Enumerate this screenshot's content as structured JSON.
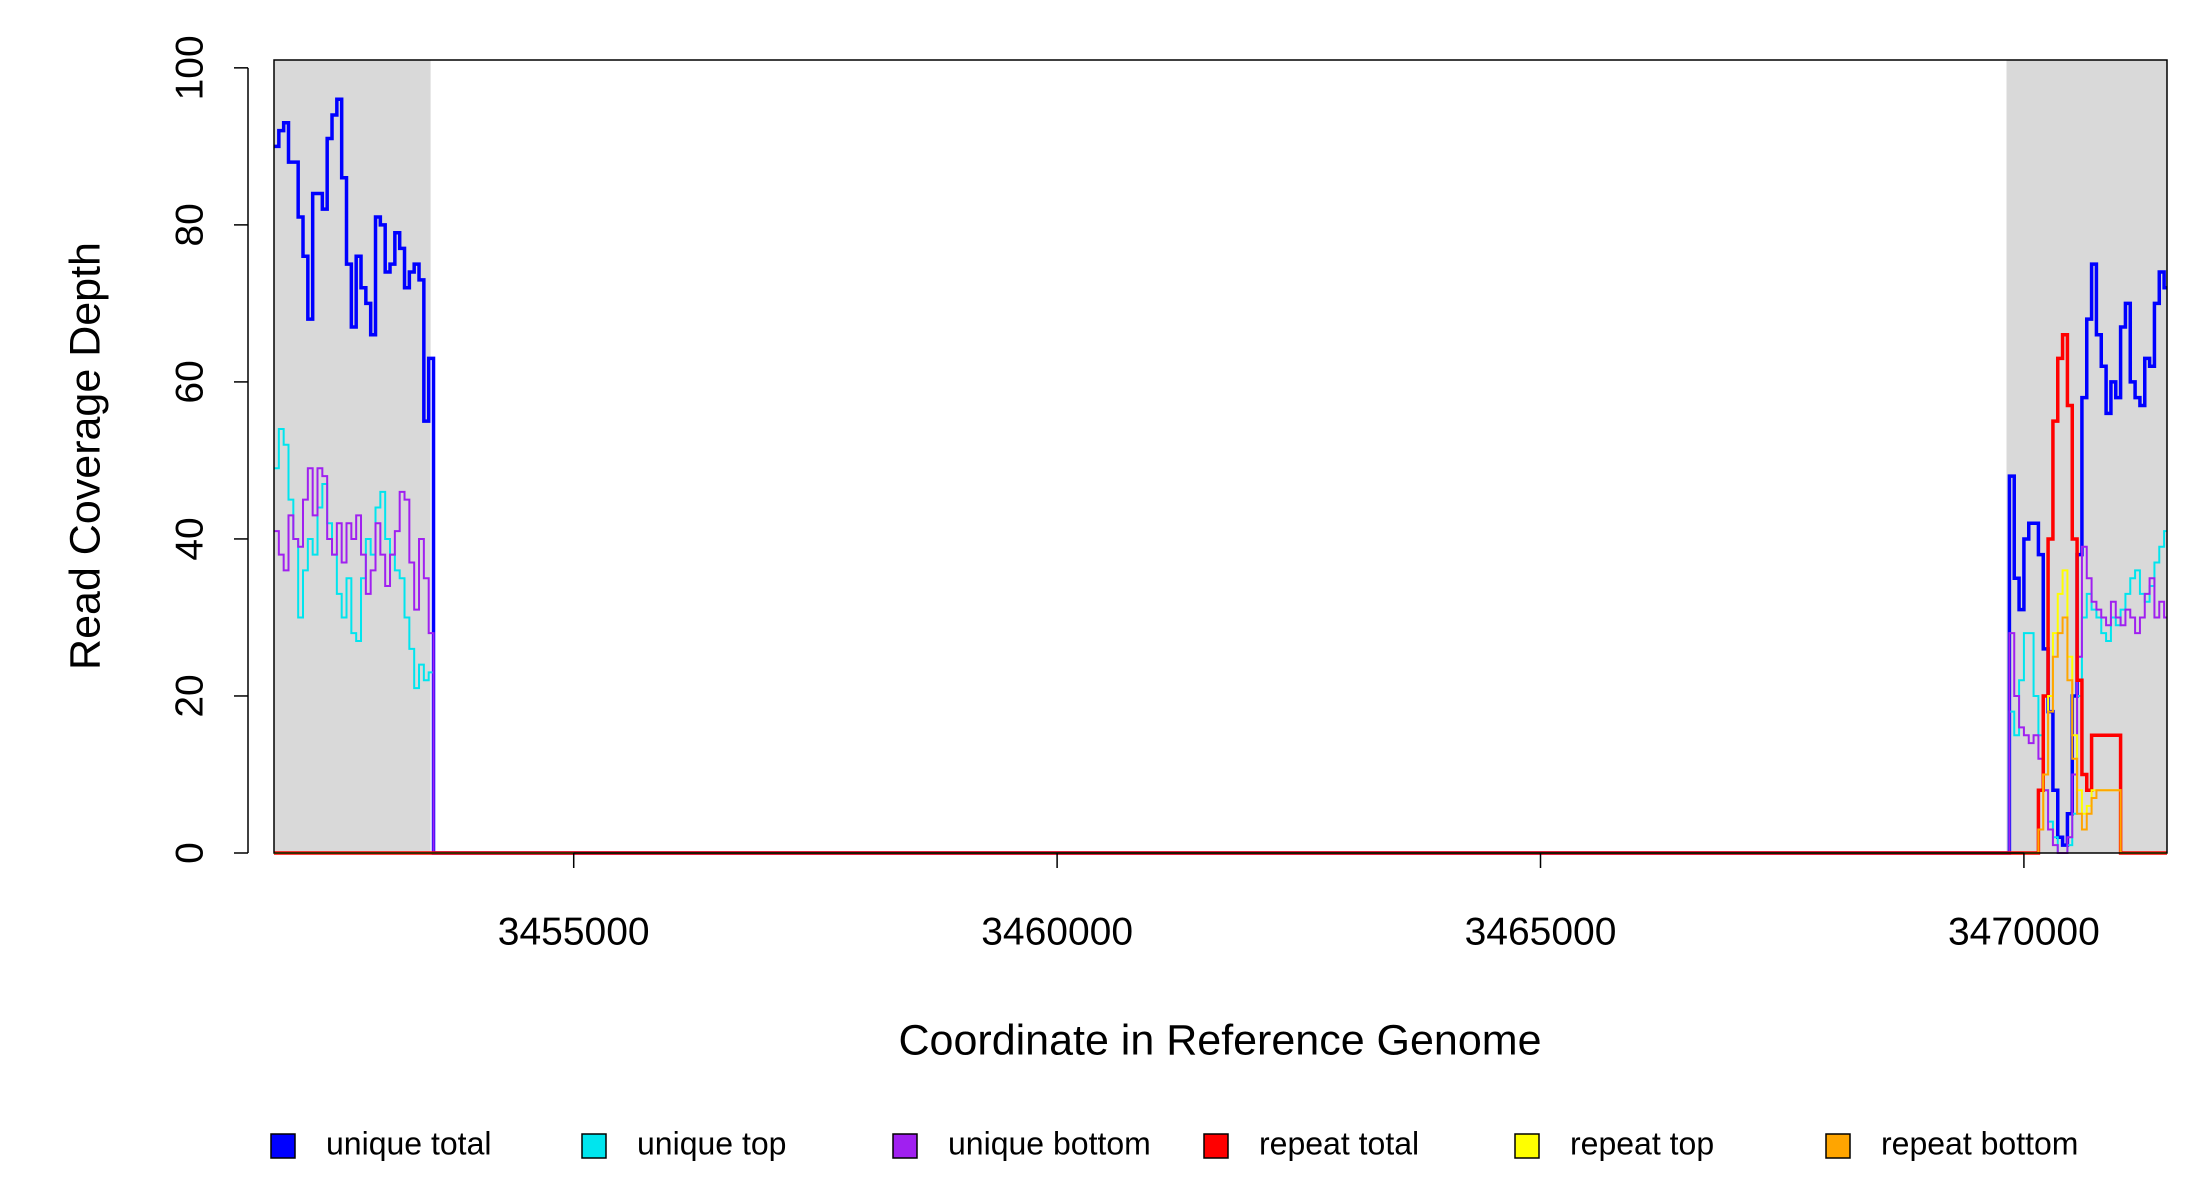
{
  "chart_data": {
    "type": "line",
    "step": true,
    "x_label": "Coordinate in Reference Genome",
    "y_label": "Read Coverage Depth",
    "xlim": [
      3451900,
      3471480
    ],
    "ylim": [
      0,
      101
    ],
    "xticks": [
      3455000,
      3460000,
      3465000,
      3470000
    ],
    "yticks": [
      0,
      20,
      40,
      60,
      80,
      100
    ],
    "shaded_regions": [
      [
        3451900,
        3453520
      ],
      [
        3469820,
        3471480
      ]
    ],
    "shade_color": "#d9d9d9",
    "legend": "bottom",
    "x": [
      3451900,
      3451950,
      3452000,
      3452050,
      3452100,
      3452150,
      3452200,
      3452250,
      3452300,
      3452350,
      3452400,
      3452450,
      3452500,
      3452550,
      3452600,
      3452650,
      3452700,
      3452750,
      3452800,
      3452850,
      3452900,
      3452950,
      3453000,
      3453050,
      3453100,
      3453150,
      3453200,
      3453250,
      3453300,
      3453350,
      3453400,
      3453450,
      3453500,
      3453550,
      3469850,
      3469900,
      3469950,
      3470000,
      3470050,
      3470100,
      3470150,
      3470200,
      3470250,
      3470300,
      3470350,
      3470400,
      3470450,
      3470500,
      3470550,
      3470600,
      3470650,
      3470700,
      3470750,
      3470800,
      3470850,
      3470900,
      3470950,
      3471000,
      3471050,
      3471100,
      3471150,
      3471200,
      3471250,
      3471300,
      3471350,
      3471400,
      3471450
    ],
    "series": [
      {
        "name": "unique total",
        "color": "#0000ff",
        "values": [
          90,
          92,
          93,
          88,
          88,
          81,
          76,
          68,
          84,
          84,
          82,
          91,
          94,
          96,
          86,
          75,
          67,
          76,
          72,
          70,
          66,
          81,
          80,
          74,
          75,
          79,
          77,
          72,
          74,
          75,
          73,
          55,
          63,
          0,
          48,
          35,
          31,
          40,
          42,
          42,
          38,
          26,
          18,
          8,
          2,
          1,
          5,
          20,
          38,
          58,
          68,
          75,
          66,
          62,
          56,
          60,
          58,
          67,
          70,
          60,
          58,
          57,
          63,
          62,
          70,
          74,
          72
        ]
      },
      {
        "name": "unique top",
        "color": "#00e5ee",
        "values": [
          49,
          54,
          52,
          45,
          40,
          30,
          36,
          40,
          38,
          44,
          47,
          42,
          38,
          33,
          30,
          35,
          28,
          27,
          35,
          40,
          38,
          44,
          46,
          40,
          38,
          36,
          35,
          30,
          26,
          21,
          24,
          22,
          23,
          0,
          18,
          15,
          22,
          28,
          28,
          20,
          15,
          8,
          4,
          2,
          0,
          0,
          1,
          5,
          20,
          30,
          33,
          31,
          30,
          28,
          27,
          30,
          29,
          31,
          33,
          35,
          36,
          33,
          32,
          34,
          37,
          39,
          41
        ]
      },
      {
        "name": "unique bottom",
        "color": "#a020f0",
        "values": [
          41,
          38,
          36,
          43,
          40,
          39,
          45,
          49,
          43,
          49,
          48,
          40,
          38,
          42,
          37,
          42,
          40,
          43,
          38,
          33,
          36,
          42,
          38,
          34,
          38,
          41,
          46,
          45,
          37,
          31,
          40,
          35,
          28,
          0,
          28,
          20,
          16,
          15,
          14,
          15,
          12,
          8,
          3,
          1,
          0,
          0,
          2,
          10,
          25,
          39,
          35,
          32,
          31,
          30,
          29,
          32,
          30,
          29,
          31,
          30,
          28,
          30,
          33,
          35,
          30,
          32,
          30
        ]
      },
      {
        "name": "repeat total",
        "color": "#ff0000",
        "values": [
          0,
          0,
          0,
          0,
          0,
          0,
          0,
          0,
          0,
          0,
          0,
          0,
          0,
          0,
          0,
          0,
          0,
          0,
          0,
          0,
          0,
          0,
          0,
          0,
          0,
          0,
          0,
          0,
          0,
          0,
          0,
          0,
          0,
          0,
          0,
          0,
          0,
          0,
          0,
          0,
          8,
          20,
          40,
          55,
          63,
          66,
          57,
          40,
          22,
          10,
          8,
          15,
          15,
          15,
          15,
          15,
          15,
          0,
          0,
          0,
          0,
          0,
          0,
          0,
          0,
          0,
          0
        ]
      },
      {
        "name": "repeat top",
        "color": "#ffff00",
        "values": [
          0,
          0,
          0,
          0,
          0,
          0,
          0,
          0,
          0,
          0,
          0,
          0,
          0,
          0,
          0,
          0,
          0,
          0,
          0,
          0,
          0,
          0,
          0,
          0,
          0,
          0,
          0,
          0,
          0,
          0,
          0,
          0,
          0,
          0,
          0,
          0,
          0,
          0,
          0,
          0,
          3,
          10,
          20,
          28,
          33,
          36,
          25,
          15,
          8,
          5,
          6,
          8,
          8,
          8,
          8,
          8,
          8,
          0,
          0,
          0,
          0,
          0,
          0,
          0,
          0,
          0,
          0
        ]
      },
      {
        "name": "repeat bottom",
        "color": "#ffa500",
        "values": [
          0,
          0,
          0,
          0,
          0,
          0,
          0,
          0,
          0,
          0,
          0,
          0,
          0,
          0,
          0,
          0,
          0,
          0,
          0,
          0,
          0,
          0,
          0,
          0,
          0,
          0,
          0,
          0,
          0,
          0,
          0,
          0,
          0,
          0,
          0,
          0,
          0,
          0,
          0,
          0,
          3,
          10,
          18,
          25,
          28,
          30,
          22,
          12,
          5,
          3,
          5,
          7,
          8,
          8,
          8,
          8,
          8,
          0,
          0,
          0,
          0,
          0,
          0,
          0,
          0,
          0,
          0
        ]
      }
    ]
  }
}
